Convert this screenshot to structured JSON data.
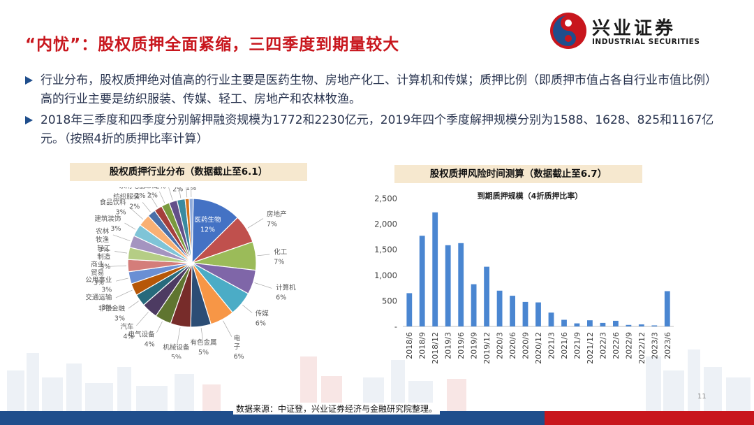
{
  "title": "“内忧”：股权质押全面紧缩，三四季度到期量较大",
  "logo": {
    "name_cn": "兴业证券",
    "name_en": "INDUSTRIAL SECURITIES"
  },
  "bullets": [
    "行业分布，股权质押绝对值高的行业主要是医药生物、房地产化工、计算机和传媒；质押比例（即质押市值占各自行业市值比例）高的行业主要是纺织服装、传媒、轻工、房地产和农林牧渔。",
    "2018年三季度和四季度分别解押融资规模为1772和2230亿元，2019年四个季度解押规模分别为1588、1628、825和1167亿元。（按照4折的质押比率计算）"
  ],
  "captions": {
    "left": "股权质押行业分布（数据截止至6.1）",
    "right": "股权质押风险时间测算（数据截止至6.7）"
  },
  "footer": {
    "source": "数据来源：中证登，兴业证券经济与金融研究院整理。",
    "page": "11"
  },
  "colors": {
    "title_red": "#c8161d",
    "band_blue": "#1f4e8c",
    "bar_blue": "#4a86d1",
    "caption_bg": "#f6e8cf"
  },
  "chart_data": [
    {
      "type": "pie",
      "labels": [
        "医药生物",
        "房地产",
        "化工",
        "计算机",
        "传媒",
        "电子",
        "有色金属",
        "机械设备",
        "电气设备",
        "汽车",
        "非银金融",
        "交通运输",
        "公用事业",
        "商业贸易",
        "轻工制造",
        "农林牧渔",
        "建筑装饰",
        "食品饮料",
        "纺织服装",
        "家用电器",
        "通信",
        "钢铁",
        "采掘",
        "休闲服务",
        "国防军工"
      ],
      "display_labels": [
        "医药生物",
        "房地产",
        "化工",
        "计算机",
        "传媒",
        "电\n子",
        "有色金属",
        "机械设备",
        "电气设备",
        "汽车",
        "非银金融",
        "交通运输",
        "公用事业",
        "商业\n贸易",
        "轻工\n制造",
        "农林\n牧渔",
        "建筑装饰",
        "食品饮料",
        "纺织服装",
        "家用电器",
        "通信",
        "钢铁",
        "采掘",
        "休闲服务",
        "国防军工"
      ],
      "values": [
        12,
        7,
        7,
        6,
        6,
        6,
        5,
        5,
        4,
        4,
        3,
        3,
        3,
        3,
        3,
        3,
        3,
        3,
        2,
        2,
        2,
        2,
        2,
        1,
        1
      ],
      "value_labels": [
        "12%",
        "7%",
        "7%",
        "6%",
        "6%",
        "6%",
        "5%",
        "5%",
        "4%",
        "4%",
        "3%",
        "3%",
        "3%",
        "3%",
        "3%",
        "3%",
        "3%",
        "3%",
        "2%",
        "2%",
        "2%",
        "2%",
        "2%",
        "1%",
        "1%"
      ],
      "colors": [
        "#4472c4",
        "#c0504d",
        "#9bbb59",
        "#7f66a8",
        "#4bacc6",
        "#f79646",
        "#2c4d75",
        "#772c2a",
        "#5f7530",
        "#4d3b62",
        "#276a7c",
        "#b65708",
        "#6a8fd4",
        "#d47d7a",
        "#b5cd85",
        "#a494c0",
        "#7fc4d7",
        "#f9b074",
        "#4a6fa8",
        "#a53f3c",
        "#7a9a3e",
        "#63508a",
        "#3a8aa0",
        "#d4731c",
        "#8eaadb"
      ],
      "label_color_note": "callout labels grey"
    },
    {
      "type": "bar",
      "title": "到期质押规模（4折质押比率）",
      "categories": [
        "2018/6",
        "2018/9",
        "2018/12",
        "2019/3",
        "2019/6",
        "2019/9",
        "2019/12",
        "2020/3",
        "2020/6",
        "2020/9",
        "2020/12",
        "2021/3",
        "2021/6",
        "2021/9",
        "2021/12",
        "2022/3",
        "2022/6",
        "2022/9",
        "2022/12",
        "2023/3",
        "2023/6"
      ],
      "values": [
        650,
        1772,
        2230,
        1588,
        1628,
        825,
        1167,
        700,
        600,
        480,
        470,
        270,
        130,
        60,
        120,
        70,
        110,
        30,
        40,
        20,
        690
      ],
      "yticks": [
        "-",
        "500",
        "1,000",
        "1,500",
        "2,000",
        "2,500"
      ],
      "ylim": [
        0,
        2500
      ]
    }
  ]
}
